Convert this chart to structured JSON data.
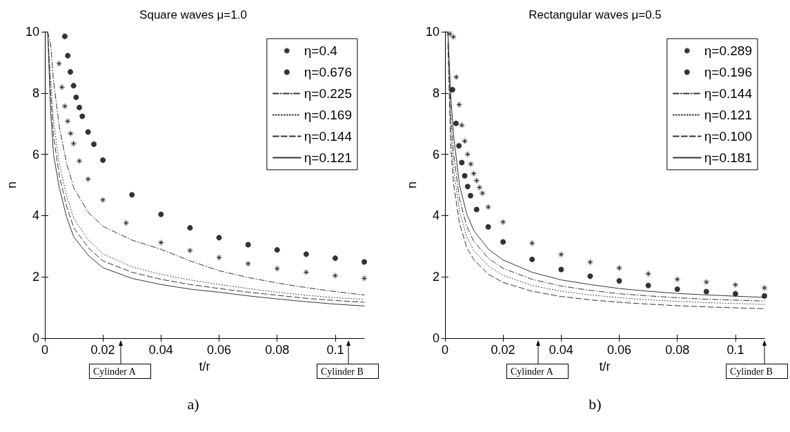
{
  "chart_data": [
    {
      "type": "line",
      "title": "Square waves μ=1.0",
      "xlabel": "t/r",
      "ylabel": "n",
      "xlim": [
        0,
        0.11
      ],
      "xticks": [
        0,
        0.02,
        0.04,
        0.06,
        0.08,
        0.1
      ],
      "ylim": [
        0,
        10
      ],
      "yticks": [
        0,
        2,
        4,
        6,
        8,
        10
      ],
      "legend": "top right",
      "x": [
        0.001,
        0.002,
        0.003,
        0.005,
        0.0075,
        0.01,
        0.015,
        0.02,
        0.03,
        0.04,
        0.05,
        0.06,
        0.07,
        0.08,
        0.09,
        0.1,
        0.11
      ],
      "series": [
        {
          "name": "η=0.4",
          "type": "scatter",
          "marker": "cross",
          "color": "#000000",
          "x": [
            0.0049,
            0.0059,
            0.0069,
            0.0079,
            0.0089,
            0.0099,
            0.0119,
            0.0149,
            0.02,
            0.028,
            0.04,
            0.05,
            0.06,
            0.07,
            0.08,
            0.09,
            0.1,
            0.11
          ],
          "values": [
            8.96,
            8.19,
            7.57,
            7.08,
            6.68,
            6.35,
            5.78,
            5.19,
            4.51,
            3.76,
            3.12,
            2.86,
            2.63,
            2.43,
            2.27,
            2.15,
            2.04,
            1.95
          ]
        },
        {
          "name": "η=0.676",
          "type": "scatter",
          "marker": "circle",
          "color": "#000000",
          "x": [
            0.0069,
            0.0079,
            0.0088,
            0.0099,
            0.0108,
            0.0119,
            0.0129,
            0.0149,
            0.0169,
            0.02,
            0.03,
            0.04,
            0.05,
            0.06,
            0.07,
            0.08,
            0.09,
            0.1,
            0.11
          ],
          "values": [
            9.85,
            9.22,
            8.69,
            8.24,
            7.86,
            7.53,
            7.24,
            6.73,
            6.33,
            5.81,
            4.68,
            4.04,
            3.6,
            3.28,
            3.05,
            2.88,
            2.74,
            2.61,
            2.49
          ]
        },
        {
          "name": "η=0.225",
          "line_style": "dashdot",
          "color": "#333333",
          "values": [
            10,
            9.6,
            8.4,
            6.9,
            5.7,
            4.9,
            4.1,
            3.65,
            3.2,
            2.9,
            2.52,
            2.2,
            1.98,
            1.8,
            1.65,
            1.52,
            1.41
          ]
        },
        {
          "name": "η=0.169",
          "line_style": "dotted",
          "color": "#333333",
          "values": [
            10,
            8.5,
            7.1,
            5.7,
            4.65,
            3.9,
            3.2,
            2.75,
            2.33,
            2.08,
            1.9,
            1.75,
            1.62,
            1.5,
            1.4,
            1.32,
            1.27
          ]
        },
        {
          "name": "η=0.144",
          "line_style": "dashed",
          "color": "#333333",
          "values": [
            10,
            8.0,
            6.6,
            5.3,
            4.3,
            3.6,
            2.95,
            2.52,
            2.15,
            1.92,
            1.75,
            1.62,
            1.5,
            1.4,
            1.3,
            1.23,
            1.17
          ]
        },
        {
          "name": "η=0.121",
          "line_style": "solid",
          "color": "#333333",
          "values": [
            10,
            7.4,
            6.0,
            4.9,
            3.95,
            3.3,
            2.7,
            2.3,
            1.95,
            1.75,
            1.6,
            1.5,
            1.38,
            1.28,
            1.19,
            1.11,
            1.05
          ]
        }
      ],
      "annotations": [
        "Cylinder A",
        "Cylinder B",
        "a)"
      ]
    },
    {
      "type": "line",
      "title": "Rectangular waves μ=0.5",
      "xlabel": "t/r",
      "ylabel": "n",
      "xlim": [
        0,
        0.11
      ],
      "xticks": [
        0,
        0.02,
        0.04,
        0.06,
        0.08,
        0.1
      ],
      "ylim": [
        0,
        10
      ],
      "yticks": [
        0,
        2,
        4,
        6,
        8,
        10
      ],
      "legend": "top right",
      "x": [
        0.001,
        0.002,
        0.003,
        0.005,
        0.0075,
        0.01,
        0.015,
        0.02,
        0.03,
        0.04,
        0.05,
        0.06,
        0.07,
        0.08,
        0.09,
        0.1,
        0.11
      ],
      "series": [
        {
          "name": "η=0.289",
          "type": "scatter",
          "marker": "cross",
          "color": "#000000",
          "x": [
            0.0017,
            0.0029,
            0.0039,
            0.0049,
            0.0058,
            0.0068,
            0.0078,
            0.0089,
            0.0099,
            0.0109,
            0.0119,
            0.0129,
            0.0149,
            0.02,
            0.03,
            0.04,
            0.05,
            0.06,
            0.07,
            0.08,
            0.09,
            0.1,
            0.11
          ],
          "values": [
            9.93,
            9.83,
            8.52,
            7.62,
            6.95,
            6.43,
            6.0,
            5.68,
            5.37,
            5.14,
            4.92,
            4.73,
            4.28,
            3.79,
            3.1,
            2.73,
            2.48,
            2.29,
            2.1,
            1.92,
            1.83,
            1.74,
            1.64
          ]
        },
        {
          "name": "η=0.196",
          "type": "scatter",
          "marker": "circle",
          "color": "#000000",
          "x": [
            0.0026,
            0.0038,
            0.0048,
            0.0058,
            0.0068,
            0.0078,
            0.0088,
            0.0109,
            0.0149,
            0.02,
            0.03,
            0.04,
            0.05,
            0.06,
            0.07,
            0.08,
            0.09,
            0.1,
            0.11
          ],
          "values": [
            8.11,
            7.01,
            6.28,
            5.73,
            5.3,
            4.95,
            4.65,
            4.2,
            3.63,
            3.14,
            2.57,
            2.24,
            2.02,
            1.87,
            1.72,
            1.6,
            1.52,
            1.45,
            1.38
          ]
        },
        {
          "name": "η=0.144",
          "line_style": "dashdot",
          "color": "#333333",
          "values": [
            10,
            7.3,
            6.0,
            4.55,
            3.65,
            3.15,
            2.6,
            2.28,
            1.92,
            1.7,
            1.56,
            1.45,
            1.38,
            1.32,
            1.27,
            1.24,
            1.21
          ]
        },
        {
          "name": "η=0.121",
          "line_style": "dotted",
          "color": "#333333",
          "values": [
            10,
            6.8,
            5.5,
            4.15,
            3.3,
            2.85,
            2.35,
            2.05,
            1.72,
            1.53,
            1.41,
            1.32,
            1.25,
            1.2,
            1.16,
            1.13,
            1.1
          ]
        },
        {
          "name": "η=0.100",
          "line_style": "dashed",
          "color": "#333333",
          "values": [
            9.6,
            6.2,
            5.0,
            3.75,
            2.95,
            2.55,
            2.08,
            1.82,
            1.53,
            1.36,
            1.25,
            1.17,
            1.11,
            1.06,
            1.02,
            0.99,
            0.96
          ]
        },
        {
          "name": "η=0.181",
          "line_style": "solid",
          "color": "#333333",
          "values": [
            10,
            7.9,
            6.6,
            5.0,
            4.05,
            3.5,
            2.9,
            2.55,
            2.15,
            1.9,
            1.75,
            1.62,
            1.53,
            1.46,
            1.41,
            1.37,
            1.33
          ]
        }
      ],
      "annotations": [
        "Cylinder A",
        "Cylinder B",
        "b)"
      ]
    }
  ]
}
